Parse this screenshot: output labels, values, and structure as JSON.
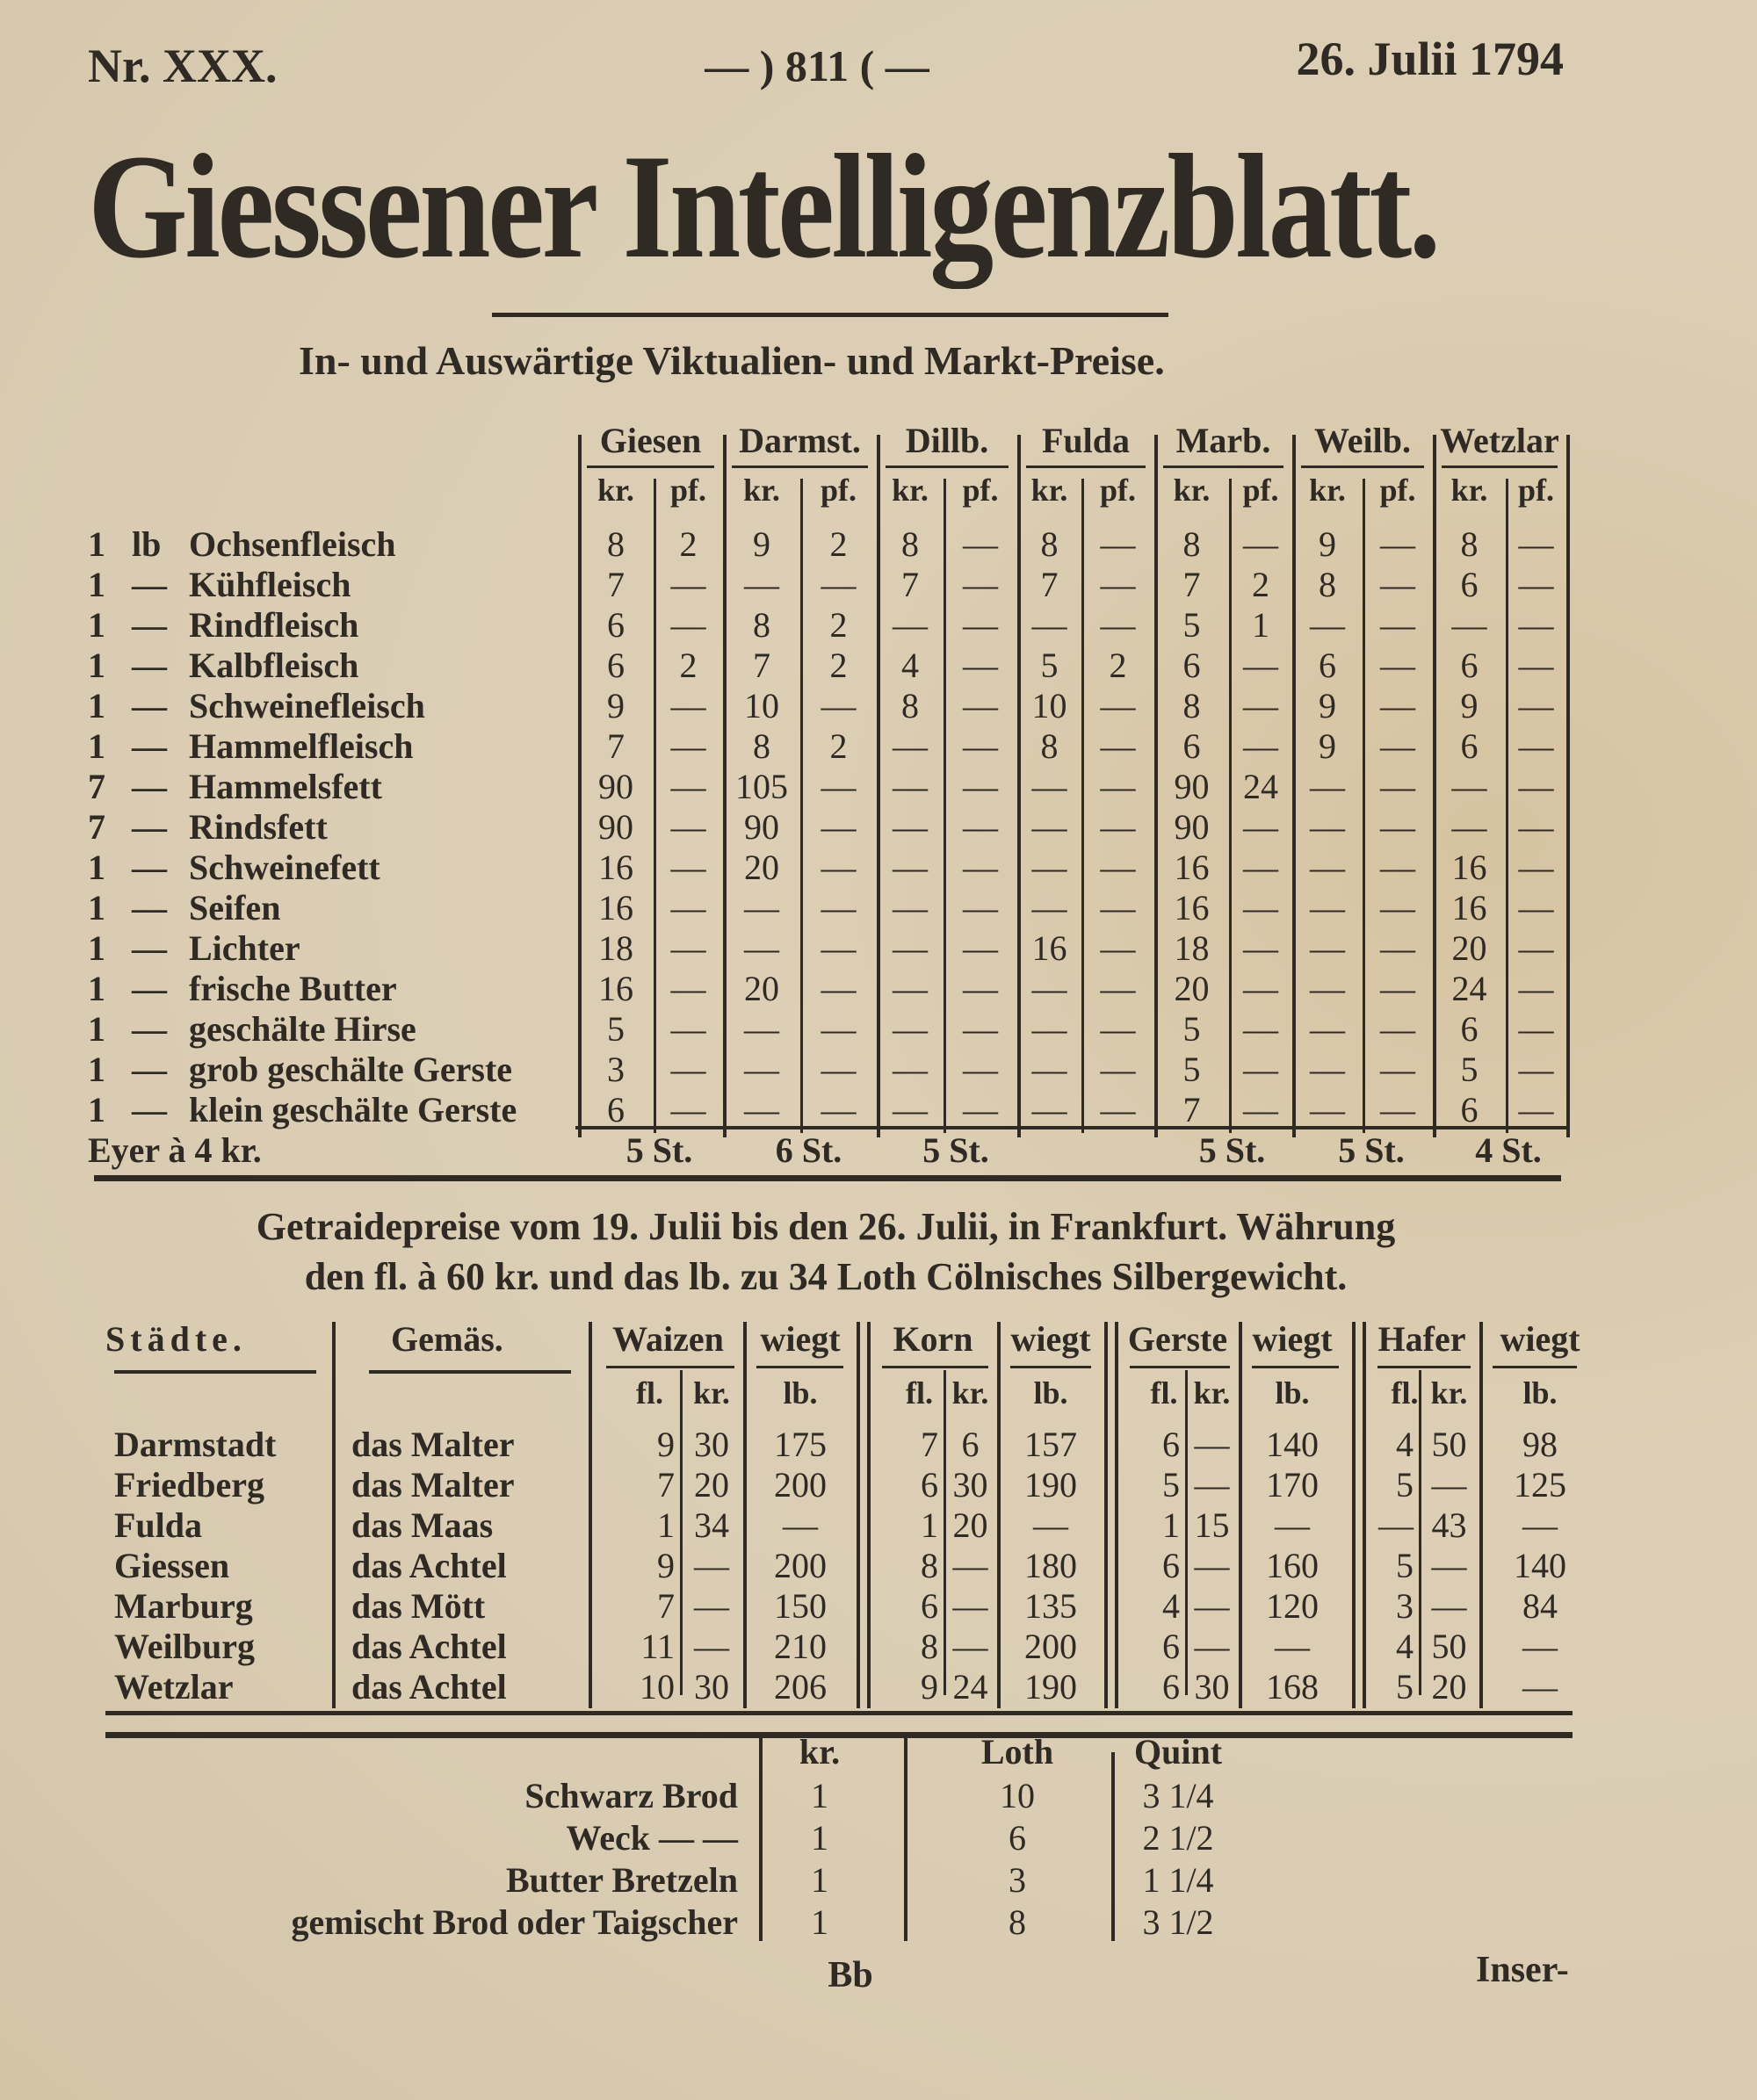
{
  "masthead": {
    "issue": "Nr. XXX.",
    "page_number": "— ) 811 ( —",
    "date": "26. Julii 1794",
    "title": "Giessener Intelligenzblatt."
  },
  "market_prices": {
    "heading": "In- und Auswärtige Viktualien- und Markt-Preise.",
    "cities": [
      "Giesen",
      "Darmst.",
      "Dillb.",
      "Fulda",
      "Marb.",
      "Weilb.",
      "Wetzlar"
    ],
    "kr_label": "kr.",
    "pf_label": "pf.",
    "items": [
      {
        "qty": "1",
        "unit": "lb",
        "name": "Ochsenfleisch",
        "prices": [
          [
            "8",
            "2"
          ],
          [
            "9",
            "2"
          ],
          [
            "8",
            "—"
          ],
          [
            "8",
            "—"
          ],
          [
            "8",
            "—"
          ],
          [
            "9",
            "—"
          ],
          [
            "8",
            "—"
          ]
        ]
      },
      {
        "qty": "1",
        "unit": "—",
        "name": "Kühfleisch",
        "prices": [
          [
            "7",
            "—"
          ],
          [
            "—",
            "—"
          ],
          [
            "7",
            "—"
          ],
          [
            "7",
            "—"
          ],
          [
            "7",
            "2"
          ],
          [
            "8",
            "—"
          ],
          [
            "6",
            "—"
          ]
        ]
      },
      {
        "qty": "1",
        "unit": "—",
        "name": "Rindfleisch",
        "prices": [
          [
            "6",
            "—"
          ],
          [
            "8",
            "2"
          ],
          [
            "—",
            "—"
          ],
          [
            "—",
            "—"
          ],
          [
            "5",
            "1"
          ],
          [
            "—",
            "—"
          ],
          [
            "—",
            "—"
          ]
        ]
      },
      {
        "qty": "1",
        "unit": "—",
        "name": "Kalbfleisch",
        "prices": [
          [
            "6",
            "2"
          ],
          [
            "7",
            "2"
          ],
          [
            "4",
            "—"
          ],
          [
            "5",
            "2"
          ],
          [
            "6",
            "—"
          ],
          [
            "6",
            "—"
          ],
          [
            "6",
            "—"
          ]
        ]
      },
      {
        "qty": "1",
        "unit": "—",
        "name": "Schweinefleisch",
        "prices": [
          [
            "9",
            "—"
          ],
          [
            "10",
            "—"
          ],
          [
            "8",
            "—"
          ],
          [
            "10",
            "—"
          ],
          [
            "8",
            "—"
          ],
          [
            "9",
            "—"
          ],
          [
            "9",
            "—"
          ]
        ]
      },
      {
        "qty": "1",
        "unit": "—",
        "name": "Hammelfleisch",
        "prices": [
          [
            "7",
            "—"
          ],
          [
            "8",
            "2"
          ],
          [
            "—",
            "—"
          ],
          [
            "8",
            "—"
          ],
          [
            "6",
            "—"
          ],
          [
            "9",
            "—"
          ],
          [
            "6",
            "—"
          ]
        ]
      },
      {
        "qty": "7",
        "unit": "—",
        "name": "Hammelsfett",
        "prices": [
          [
            "90",
            "—"
          ],
          [
            "105",
            "—"
          ],
          [
            "—",
            "—"
          ],
          [
            "—",
            "—"
          ],
          [
            "90",
            "24"
          ],
          [
            "—",
            "—"
          ],
          [
            "—",
            "—"
          ]
        ]
      },
      {
        "qty": "7",
        "unit": "—",
        "name": "Rindsfett",
        "prices": [
          [
            "90",
            "—"
          ],
          [
            "90",
            "—"
          ],
          [
            "—",
            "—"
          ],
          [
            "—",
            "—"
          ],
          [
            "90",
            "—"
          ],
          [
            "—",
            "—"
          ],
          [
            "—",
            "—"
          ]
        ]
      },
      {
        "qty": "1",
        "unit": "—",
        "name": "Schweinefett",
        "prices": [
          [
            "16",
            "—"
          ],
          [
            "20",
            "—"
          ],
          [
            "—",
            "—"
          ],
          [
            "—",
            "—"
          ],
          [
            "16",
            "—"
          ],
          [
            "—",
            "—"
          ],
          [
            "16",
            "—"
          ]
        ]
      },
      {
        "qty": "1",
        "unit": "—",
        "name": "Seifen",
        "prices": [
          [
            "16",
            "—"
          ],
          [
            "—",
            "—"
          ],
          [
            "—",
            "—"
          ],
          [
            "—",
            "—"
          ],
          [
            "16",
            "—"
          ],
          [
            "—",
            "—"
          ],
          [
            "16",
            "—"
          ]
        ]
      },
      {
        "qty": "1",
        "unit": "—",
        "name": "Lichter",
        "prices": [
          [
            "18",
            "—"
          ],
          [
            "—",
            "—"
          ],
          [
            "—",
            "—"
          ],
          [
            "16",
            "—"
          ],
          [
            "18",
            "—"
          ],
          [
            "—",
            "—"
          ],
          [
            "20",
            "—"
          ]
        ]
      },
      {
        "qty": "1",
        "unit": "—",
        "name": "frische Butter",
        "prices": [
          [
            "16",
            "—"
          ],
          [
            "20",
            "—"
          ],
          [
            "—",
            "—"
          ],
          [
            "—",
            "—"
          ],
          [
            "20",
            "—"
          ],
          [
            "—",
            "—"
          ],
          [
            "24",
            "—"
          ]
        ]
      },
      {
        "qty": "1",
        "unit": "—",
        "name": "geschälte Hirse",
        "prices": [
          [
            "5",
            "—"
          ],
          [
            "—",
            "—"
          ],
          [
            "—",
            "—"
          ],
          [
            "—",
            "—"
          ],
          [
            "5",
            "—"
          ],
          [
            "—",
            "—"
          ],
          [
            "6",
            "—"
          ]
        ]
      },
      {
        "qty": "1",
        "unit": "—",
        "name": "grob geschälte Gerste",
        "prices": [
          [
            "3",
            "—"
          ],
          [
            "—",
            "—"
          ],
          [
            "—",
            "—"
          ],
          [
            "—",
            "—"
          ],
          [
            "5",
            "—"
          ],
          [
            "—",
            "—"
          ],
          [
            "5",
            "—"
          ]
        ]
      },
      {
        "qty": "1",
        "unit": "—",
        "name": "klein geschälte Gerste",
        "prices": [
          [
            "6",
            "—"
          ],
          [
            "—",
            "—"
          ],
          [
            "—",
            "—"
          ],
          [
            "—",
            "—"
          ],
          [
            "7",
            "—"
          ],
          [
            "—",
            "—"
          ],
          [
            "6",
            "—"
          ]
        ]
      }
    ],
    "eggs": {
      "label": "Eyer à 4 kr.",
      "counts": [
        "5 St.",
        "6 St.",
        "5 St.",
        "",
        "5 St.",
        "5 St.",
        "4 St."
      ]
    }
  },
  "grain_prices": {
    "heading_line1": "Getraidepreise vom 19. Julii bis den 26. Julii, in Frankfurt. Währung",
    "heading_line2": "den fl. à 60 kr. und das lb. zu 34 Loth Cölnisches Silbergewicht.",
    "col_city": "Städte.",
    "col_measure": "Gemäs.",
    "grains": [
      "Waizen",
      "Korn",
      "Gerste",
      "Hafer"
    ],
    "weighs_label": "wiegt",
    "fl_label": "fl.",
    "kr_label": "kr.",
    "lb_label": "lb.",
    "rows": [
      {
        "city": "Darmstadt",
        "measure": "das Malter",
        "values": [
          [
            "9",
            "30",
            "175"
          ],
          [
            "7",
            "6",
            "157"
          ],
          [
            "6",
            "—",
            "140"
          ],
          [
            "4",
            "50",
            "98"
          ]
        ]
      },
      {
        "city": "Friedberg",
        "measure": "das Malter",
        "values": [
          [
            "7",
            "20",
            "200"
          ],
          [
            "6",
            "30",
            "190"
          ],
          [
            "5",
            "—",
            "170"
          ],
          [
            "5",
            "—",
            "125"
          ]
        ]
      },
      {
        "city": "Fulda",
        "measure": "das Maas",
        "values": [
          [
            "1",
            "34",
            "—"
          ],
          [
            "1",
            "20",
            "—"
          ],
          [
            "1",
            "15",
            "—"
          ],
          [
            "—",
            "43",
            "—"
          ]
        ]
      },
      {
        "city": "Giessen",
        "measure": "das Achtel",
        "values": [
          [
            "9",
            "—",
            "200"
          ],
          [
            "8",
            "—",
            "180"
          ],
          [
            "6",
            "—",
            "160"
          ],
          [
            "5",
            "—",
            "140"
          ]
        ]
      },
      {
        "city": "Marburg",
        "measure": "das Mött",
        "values": [
          [
            "7",
            "—",
            "150"
          ],
          [
            "6",
            "—",
            "135"
          ],
          [
            "4",
            "—",
            "120"
          ],
          [
            "3",
            "—",
            "84"
          ]
        ]
      },
      {
        "city": "Weilburg",
        "measure": "das Achtel",
        "values": [
          [
            "11",
            "—",
            "210"
          ],
          [
            "8",
            "—",
            "200"
          ],
          [
            "6",
            "—",
            "—"
          ],
          [
            "4",
            "50",
            "—"
          ]
        ]
      },
      {
        "city": "Wetzlar",
        "measure": "das Achtel",
        "values": [
          [
            "10",
            "30",
            "206"
          ],
          [
            "9",
            "24",
            "190"
          ],
          [
            "6",
            "30",
            "168"
          ],
          [
            "5",
            "20",
            "—"
          ]
        ]
      }
    ]
  },
  "bread_prices": {
    "col_kr": "kr.",
    "col_loth": "Loth",
    "col_quint": "Quint",
    "rows": [
      {
        "name": "Schwarz Brod",
        "kr": "1",
        "loth": "10",
        "quint": "3 1/4"
      },
      {
        "name": "Weck — —",
        "kr": "1",
        "loth": "6",
        "quint": "2 1/2"
      },
      {
        "name": "Butter Bretzeln",
        "kr": "1",
        "loth": "3",
        "quint": "1 1/4"
      },
      {
        "name": "gemischt Brod oder Taigscher",
        "kr": "1",
        "loth": "8",
        "quint": "3 1/2"
      }
    ]
  },
  "footer": {
    "signature_mark": "Bb",
    "catchword": "Inser-"
  },
  "colors": {
    "paper": "#d9ccb2",
    "ink": "#2f2a24"
  }
}
